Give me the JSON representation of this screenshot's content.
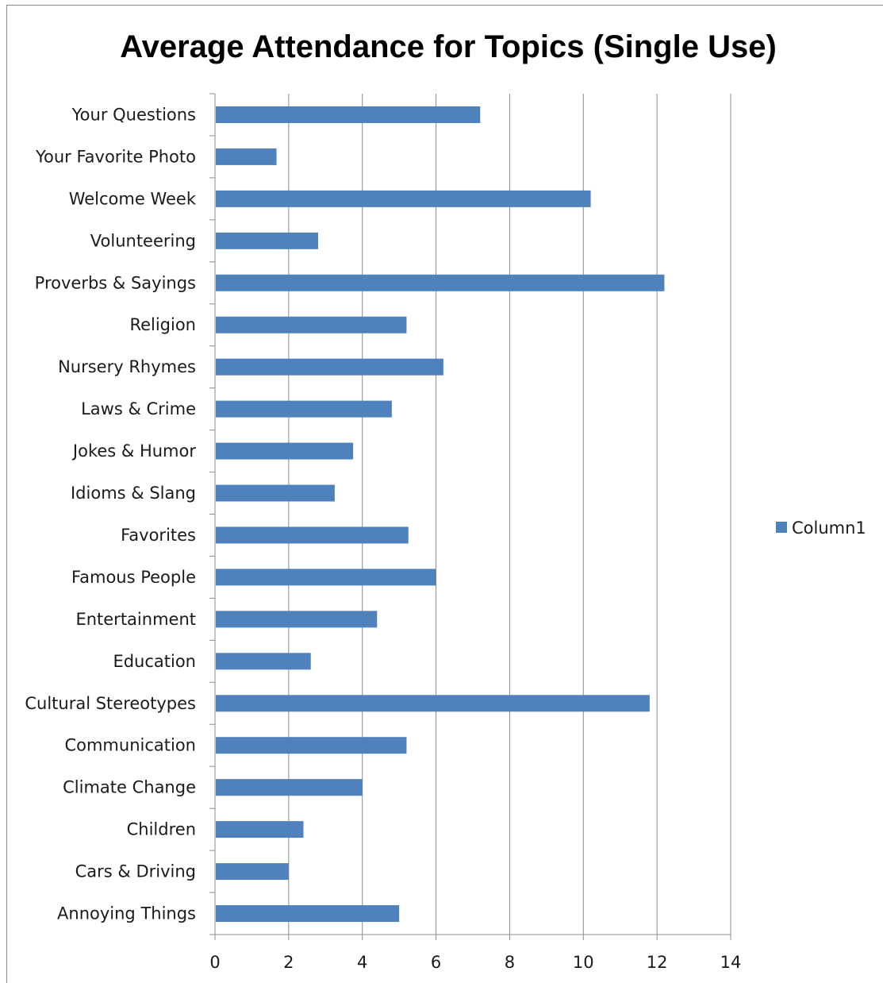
{
  "chart_data": {
    "type": "bar",
    "orientation": "horizontal",
    "title": "Average Attendance for Topics (Single Use)",
    "categories": [
      "Your Questions",
      "Your Favorite Photo",
      "Welcome Week",
      "Volunteering",
      "Proverbs & Sayings",
      "Religion",
      "Nursery Rhymes",
      "Laws & Crime",
      "Jokes & Humor",
      "Idioms & Slang",
      "Favorites",
      "Famous People",
      "Entertainment",
      "Education",
      "Cultural Stereotypes",
      "Communication",
      "Climate Change",
      "Children",
      "Cars & Driving",
      "Annoying Things"
    ],
    "series": [
      {
        "name": "Column1",
        "color": "#4f81bd",
        "values": [
          7.2,
          1.67,
          10.2,
          2.8,
          12.2,
          5.2,
          6.2,
          4.8,
          3.75,
          3.25,
          5.25,
          6.0,
          4.4,
          2.6,
          11.8,
          5.2,
          4.0,
          2.4,
          2.0,
          5.0
        ]
      }
    ],
    "xlim": [
      0,
      14
    ],
    "xticks": [
      0,
      2,
      4,
      6,
      8,
      10,
      12,
      14
    ],
    "grid": true,
    "legend": "right"
  }
}
